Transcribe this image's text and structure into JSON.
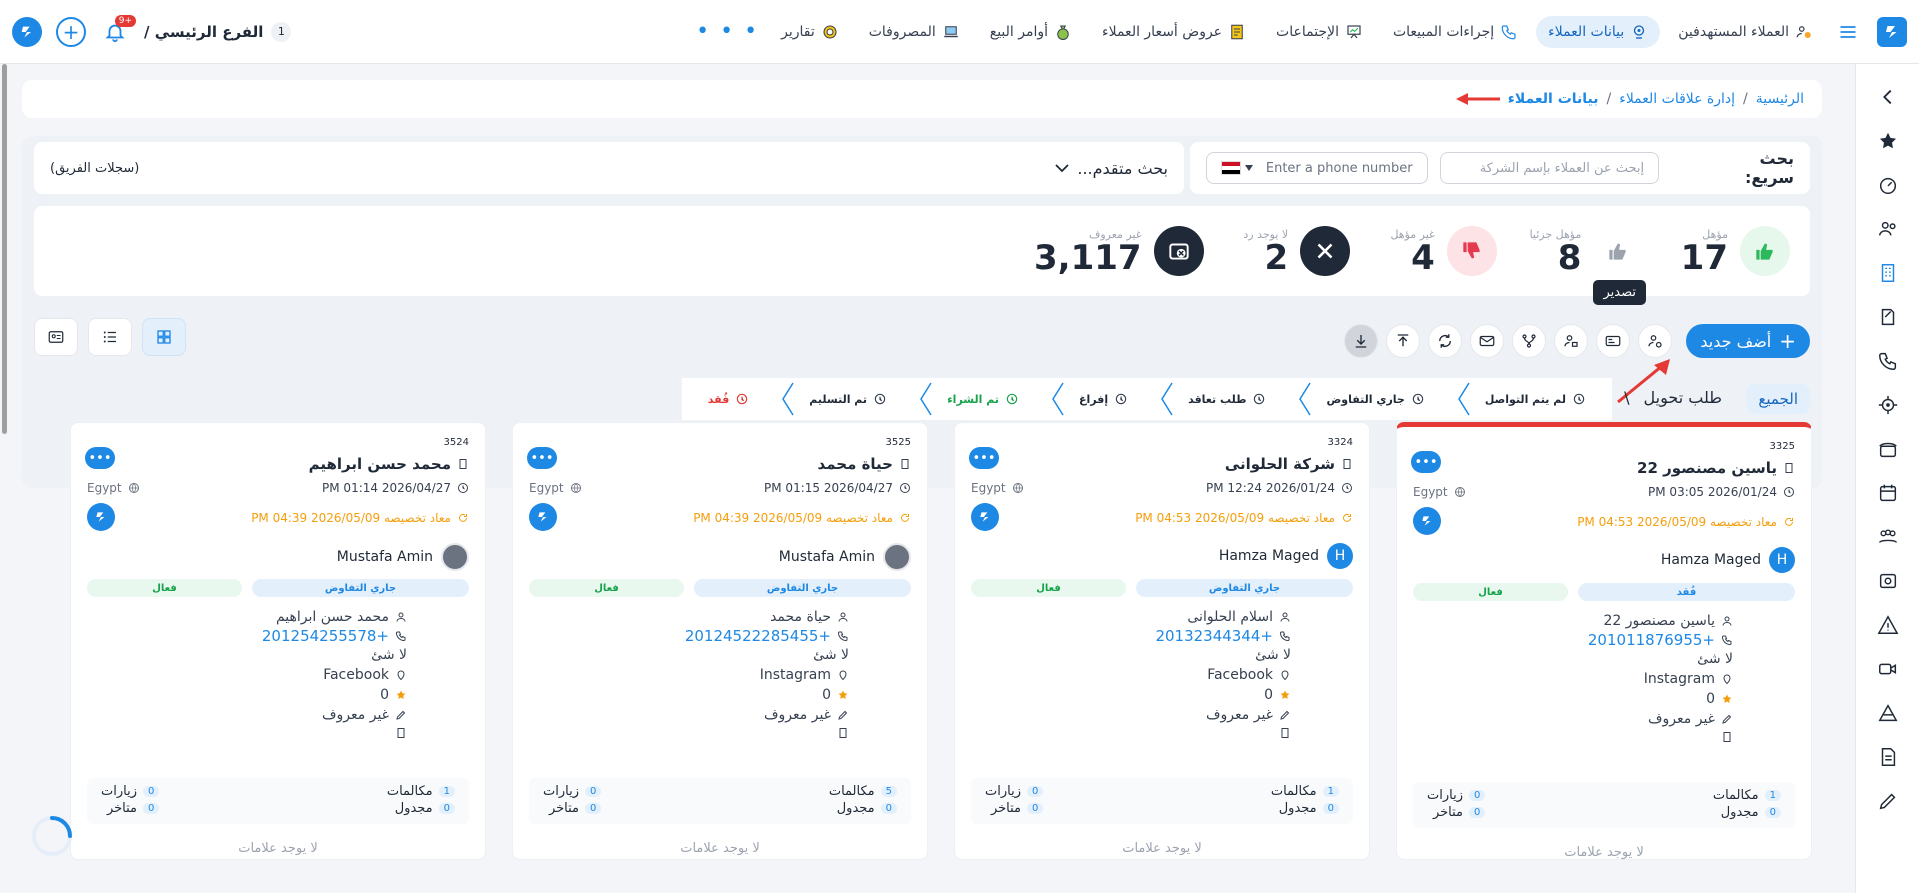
{
  "nav": {
    "items": [
      {
        "label": "العملاء المستهدفين",
        "icon": "target-customers-icon",
        "active": false
      },
      {
        "label": "بيانات العملاء",
        "icon": "customer-data-icon",
        "active": true
      },
      {
        "label": "إجراءات المبيعات",
        "icon": "phone-icon",
        "active": false
      },
      {
        "label": "الإجتماعات",
        "icon": "meeting-icon",
        "active": false
      },
      {
        "label": "عروض أسعار العملاء",
        "icon": "quote-icon",
        "active": false
      },
      {
        "label": "أوامر البيع",
        "icon": "money-bag-icon",
        "active": false
      },
      {
        "label": "المصروفات",
        "icon": "laptop-icon",
        "active": false
      },
      {
        "label": "تقارير",
        "icon": "report-icon",
        "active": false
      }
    ],
    "more": "• • •",
    "branch_label": "الفرع الرئيسي /",
    "branch_count": "1",
    "notif_badge": "+9",
    "plus": "+"
  },
  "breadcrumb": {
    "home": "الرئيسية",
    "sep": "/",
    "parent": "إدارة علاقات العملاء",
    "current": "بيانات العملاء"
  },
  "search": {
    "quick_label": "بحث سريع:",
    "company_placeholder": "إبحث عن العملاء بإسم الشركة",
    "phone_placeholder": "Enter a phone number",
    "advanced": "بحث متقدم...",
    "team_records": "(سجلات الفريق)"
  },
  "stats": [
    {
      "title": "مؤهل",
      "value": "17",
      "icon": "thumbs-up-icon",
      "color": "#2eb85c",
      "bg": "#e6f7ec"
    },
    {
      "title": "مؤهل جزئيا",
      "value": "8",
      "icon": "thumbs-up-gray-icon",
      "color": "#9ca3af",
      "bg": "#ffffff"
    },
    {
      "title": "غير مؤهل",
      "value": "4",
      "icon": "thumbs-down-icon",
      "color": "#e53950",
      "bg": "#fde2e6"
    },
    {
      "title": "لا يوجد رد",
      "value": "2",
      "icon": "close-icon",
      "color": "#ffffff",
      "bg": "#1f2937"
    },
    {
      "title": "غير معروف",
      "value": "3,117",
      "icon": "unknown-icon",
      "color": "#ffffff",
      "bg": "#1f2937"
    }
  ],
  "toolbar": {
    "add_new": "أضف جديد",
    "export_tooltip": "تصدير"
  },
  "stages": {
    "all": "الجميع",
    "conversion": "طلب تحويل",
    "conversion_sep": "\\",
    "items": [
      {
        "label": "لم يتم التواصل",
        "icon": "no-contact-icon",
        "tone": "normal"
      },
      {
        "label": "جاري التفاوض",
        "icon": "negotiation-icon",
        "tone": "normal"
      },
      {
        "label": "طلب تعاقد",
        "icon": "contract-icon",
        "tone": "normal"
      },
      {
        "label": "إفراغ",
        "icon": "pen-icon",
        "tone": "normal"
      },
      {
        "label": "تم الشراء",
        "icon": "purchased-icon",
        "tone": "green"
      },
      {
        "label": "تم التسليم",
        "icon": "delivered-icon",
        "tone": "normal"
      },
      {
        "label": "فُقد",
        "icon": "lost-icon",
        "tone": "red"
      }
    ]
  },
  "cards": [
    {
      "id": "3325",
      "name": "ياسين مصنصور 22",
      "date": "PM 03:05 2026/01/24",
      "country": "Egypt",
      "reassign": "معاد تخصيصه 2026/05/09 PM 04:53",
      "owner": "Hamza Maged",
      "owner_avatar": "H",
      "status": "فُقد",
      "activity": "فعال",
      "contact": "ياسين مصنصور 22",
      "phone": "+201011876955",
      "nothing": "لا شئ",
      "source": "Instagram",
      "rating": "0",
      "unknown": "غير معروف",
      "calls": "1",
      "calls_label": "مكالمات",
      "scheduled": "0",
      "scheduled_label": "مجدول",
      "visits": "0",
      "visits_label": "زيارات",
      "late": "0",
      "late_label": "متاخر",
      "no_labels": "لا يوجد علامات",
      "red_top": true
    },
    {
      "id": "3324",
      "name": "شركة الحلوانى",
      "date": "PM 12:24 2026/01/24",
      "country": "Egypt",
      "reassign": "معاد تخصيصه 2026/05/09 PM 04:53",
      "owner": "Hamza Maged",
      "owner_avatar": "H",
      "status": "جاري التفاوض",
      "activity": "فعال",
      "contact": "اسلام الحلوانى",
      "phone": "+20132344344",
      "nothing": "لا شئ",
      "source": "Facebook",
      "rating": "0",
      "unknown": "غير معروف",
      "calls": "1",
      "calls_label": "مكالمات",
      "scheduled": "0",
      "scheduled_label": "مجدول",
      "visits": "0",
      "visits_label": "زيارات",
      "late": "0",
      "late_label": "متاخر",
      "no_labels": "لا يوجد علامات",
      "red_top": false
    },
    {
      "id": "3525",
      "name": "حياة محمد",
      "date": "PM 01:15 2026/04/27",
      "country": "Egypt",
      "reassign": "معاد تخصيصه 2026/05/09 PM 04:39",
      "owner": "Mustafa Amin",
      "owner_avatar": "",
      "status": "جاري التفاوض",
      "activity": "فعال",
      "contact": "حياة محمد",
      "phone": "+20124522285455",
      "nothing": "لا شئ",
      "source": "Instagram",
      "rating": "0",
      "unknown": "غير معروف",
      "calls": "5",
      "calls_label": "مكالمات",
      "scheduled": "0",
      "scheduled_label": "مجدول",
      "visits": "0",
      "visits_label": "زيارات",
      "late": "0",
      "late_label": "متاخر",
      "no_labels": "لا يوجد علامات",
      "red_top": false
    },
    {
      "id": "3524",
      "name": "محمد حسن ابراهيم",
      "date": "PM 01:14 2026/04/27",
      "country": "Egypt",
      "reassign": "معاد تخصيصه 2026/05/09 PM 04:39",
      "owner": "Mustafa Amin",
      "owner_avatar": "",
      "status": "جاري التفاوض",
      "activity": "فعال",
      "contact": "محمد حسن ابراهيم",
      "phone": "+201254255578",
      "nothing": "لا شئ",
      "source": "Facebook",
      "rating": "0",
      "unknown": "غير معروف",
      "calls": "1",
      "calls_label": "مكالمات",
      "scheduled": "0",
      "scheduled_label": "مجدول",
      "visits": "0",
      "visits_label": "زيارات",
      "late": "0",
      "late_label": "متاخر",
      "no_labels": "لا يوجد علامات",
      "red_top": false
    }
  ],
  "colors": {
    "primary": "#1e88e5",
    "danger": "#e53935",
    "success": "#16a34a",
    "warning": "#f59e0b"
  }
}
